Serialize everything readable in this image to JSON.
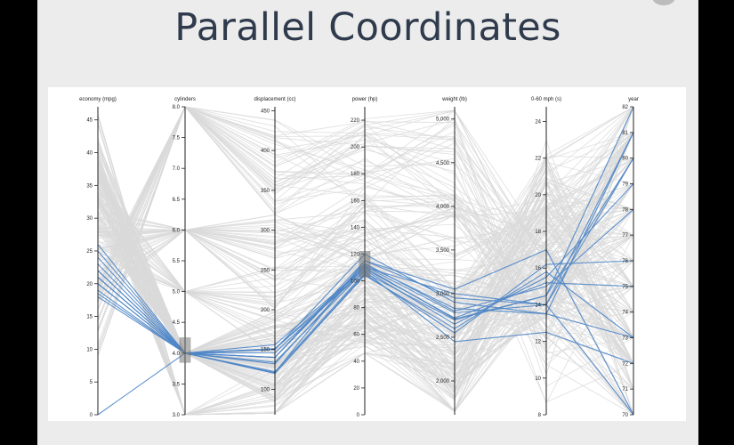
{
  "page": {
    "title": "Parallel Coordinates"
  },
  "colors": {
    "background_bar": "#000000",
    "slide": "#ececec",
    "title": "#2f3b4c",
    "context_line": "#d9d9d9",
    "highlight_line": "#4f86c6",
    "axis": "#222222",
    "brush": "#777777"
  },
  "chart_data": {
    "type": "parallel-coordinates",
    "grid": false,
    "axes": [
      {
        "name": "economy (mpg)",
        "domain": [
          0,
          47
        ],
        "ticks": [
          0,
          5,
          10,
          15,
          20,
          25,
          30,
          35,
          40,
          45
        ],
        "tick_labels": [
          "0",
          "5",
          "10",
          "15",
          "20",
          "25",
          "30",
          "35",
          "40",
          "45"
        ],
        "reversed": false
      },
      {
        "name": "cylinders",
        "domain": [
          3,
          8
        ],
        "ticks": [
          3.0,
          3.5,
          4.0,
          4.5,
          5.0,
          5.5,
          6.0,
          6.5,
          7.0,
          7.5,
          8.0
        ],
        "tick_labels": [
          "3.0",
          "3.5",
          "4.0",
          "4.5",
          "5.0",
          "5.5",
          "6.0",
          "6.5",
          "7.0",
          "7.5",
          "8.0"
        ],
        "reversed": false
      },
      {
        "name": "displacement (cc)",
        "domain": [
          68,
          455
        ],
        "ticks": [
          100,
          150,
          200,
          250,
          300,
          350,
          400,
          450
        ],
        "tick_labels": [
          "100",
          "150",
          "200",
          "250",
          "300",
          "350",
          "400",
          "450"
        ],
        "reversed": false
      },
      {
        "name": "power (hp)",
        "domain": [
          0,
          230
        ],
        "ticks": [
          0,
          20,
          40,
          60,
          80,
          100,
          120,
          140,
          160,
          180,
          200,
          220
        ],
        "tick_labels": [
          "0",
          "20",
          "40",
          "60",
          "80",
          "100",
          "120",
          "140",
          "160",
          "180",
          "200",
          "220"
        ],
        "reversed": false
      },
      {
        "name": "weight (lb)",
        "domain": [
          1613,
          5140
        ],
        "ticks": [
          2000,
          2500,
          3000,
          3500,
          4000,
          4500,
          5000
        ],
        "tick_labels": [
          "2,000",
          "2,500",
          "3,000",
          "3,500",
          "4,000",
          "4,500",
          "5,000"
        ],
        "reversed": false
      },
      {
        "name": "0-60 mph (s)",
        "domain": [
          8,
          24.8
        ],
        "ticks": [
          8,
          10,
          12,
          14,
          16,
          18,
          20,
          22,
          24
        ],
        "tick_labels": [
          "8",
          "10",
          "12",
          "14",
          "16",
          "18",
          "20",
          "22",
          "24"
        ],
        "reversed": false
      },
      {
        "name": "year",
        "domain": [
          70,
          82
        ],
        "ticks": [
          70,
          71,
          72,
          73,
          74,
          75,
          76,
          77,
          78,
          79,
          80,
          81,
          82
        ],
        "tick_labels": [
          "70",
          "71",
          "72",
          "73",
          "74",
          "75",
          "76",
          "77",
          "78",
          "79",
          "80",
          "81",
          "82"
        ],
        "reversed": false
      }
    ],
    "brushes": [
      {
        "axis": "cylinders",
        "range": [
          3.85,
          4.25
        ]
      },
      {
        "axis": "power (hp)",
        "range": [
          103,
          122
        ]
      }
    ],
    "highlighted_records": [
      [
        23,
        4,
        151,
        110,
        2710,
        14.5,
        82
      ],
      [
        22,
        4,
        140,
        112,
        2830,
        13.5,
        81
      ],
      [
        19,
        4,
        121,
        115,
        2950,
        14.0,
        80
      ],
      [
        21,
        4,
        134,
        108,
        2650,
        15.5,
        79
      ],
      [
        24,
        4,
        122,
        106,
        2700,
        14.5,
        80
      ],
      [
        20,
        4,
        140,
        113,
        2800,
        15.0,
        78
      ],
      [
        18,
        4,
        156,
        110,
        3000,
        14.0,
        81
      ],
      [
        25,
        4,
        120,
        104,
        2600,
        15.8,
        73
      ],
      [
        22,
        4,
        132,
        111,
        2780,
        14.0,
        70
      ],
      [
        21,
        4,
        151,
        107,
        2450,
        12.5,
        72
      ],
      [
        26,
        4,
        120,
        105,
        2550,
        16.2,
        76
      ],
      [
        20,
        4,
        140,
        115,
        3050,
        17.0,
        70
      ],
      [
        0,
        4,
        150,
        120,
        2900,
        13.5,
        73
      ],
      [
        18.5,
        4,
        146,
        109,
        2720,
        15.2,
        75
      ]
    ]
  }
}
